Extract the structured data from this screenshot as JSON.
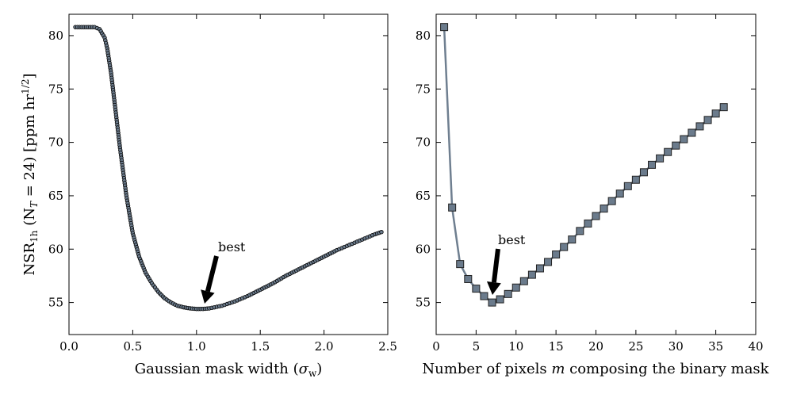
{
  "chart_data": [
    {
      "type": "scatter",
      "xlabel_main": "Gaussian mask width (",
      "xlabel_sym": "σ",
      "xlabel_sub": "w",
      "xlabel_end": ")",
      "ylabel_main": "NSR",
      "ylabel_sub": "1h",
      "ylabel_rest": " (N",
      "ylabel_sub2": "T",
      "ylabel_end": " = 24) [ppm hr",
      "ylabel_sup": "1/2",
      "ylabel_close": "]",
      "xlim": [
        0.0,
        2.5
      ],
      "ylim": [
        52.0,
        82.0
      ],
      "xticks": [
        "0.0",
        "0.5",
        "1.0",
        "1.5",
        "2.0",
        "2.5"
      ],
      "yticks": [
        "55",
        "60",
        "65",
        "70",
        "75",
        "80"
      ],
      "annotation": {
        "text": "best",
        "x": 1.06,
        "y": 54.4
      },
      "series": [
        {
          "x": [
            0.05,
            0.1,
            0.15,
            0.2,
            0.24,
            0.28,
            0.3,
            0.33,
            0.36,
            0.4,
            0.45,
            0.5,
            0.55,
            0.6,
            0.65,
            0.7,
            0.75,
            0.8,
            0.85,
            0.9,
            0.95,
            1.0,
            1.05,
            1.1,
            1.2,
            1.3,
            1.4,
            1.5,
            1.6,
            1.7,
            1.8,
            1.9,
            2.0,
            2.1,
            2.2,
            2.3,
            2.4,
            2.45
          ],
          "y": [
            80.8,
            80.8,
            80.8,
            80.8,
            80.6,
            79.8,
            78.8,
            76.5,
            73.5,
            69.5,
            65.0,
            61.5,
            59.3,
            57.8,
            56.8,
            56.0,
            55.4,
            55.0,
            54.7,
            54.55,
            54.45,
            54.4,
            54.4,
            54.45,
            54.7,
            55.1,
            55.6,
            56.2,
            56.8,
            57.5,
            58.1,
            58.7,
            59.3,
            59.9,
            60.4,
            60.9,
            61.4,
            61.6
          ]
        }
      ]
    },
    {
      "type": "line",
      "xlabel_main": "Number of pixels ",
      "xlabel_sym": "m",
      "xlabel_end": " composing the binary mask",
      "xlim": [
        0,
        40
      ],
      "ylim": [
        52.0,
        82.0
      ],
      "xticks": [
        "0",
        "5",
        "10",
        "15",
        "20",
        "25",
        "30",
        "35",
        "40"
      ],
      "yticks": [
        "55",
        "60",
        "65",
        "70",
        "75",
        "80"
      ],
      "annotation": {
        "text": "best",
        "x": 7,
        "y": 55.0
      },
      "series": [
        {
          "x": [
            1,
            2,
            3,
            4,
            5,
            6,
            7,
            8,
            9,
            10,
            11,
            12,
            13,
            14,
            15,
            16,
            17,
            18,
            19,
            20,
            21,
            22,
            23,
            24,
            25,
            26,
            27,
            28,
            29,
            30,
            31,
            32,
            33,
            34,
            35,
            36
          ],
          "y": [
            80.8,
            63.9,
            58.6,
            57.2,
            56.3,
            55.6,
            55.0,
            55.3,
            55.8,
            56.4,
            57.0,
            57.6,
            58.2,
            58.8,
            59.5,
            60.2,
            60.9,
            61.7,
            62.4,
            63.1,
            63.8,
            64.5,
            65.2,
            65.9,
            66.5,
            67.2,
            67.9,
            68.5,
            69.1,
            69.7,
            70.3,
            70.9,
            71.5,
            72.1,
            72.7,
            73.3
          ]
        }
      ]
    }
  ],
  "colors": {
    "marker_fill": "#6b7b8c",
    "line": "#6f7f90",
    "axis": "#000000"
  }
}
